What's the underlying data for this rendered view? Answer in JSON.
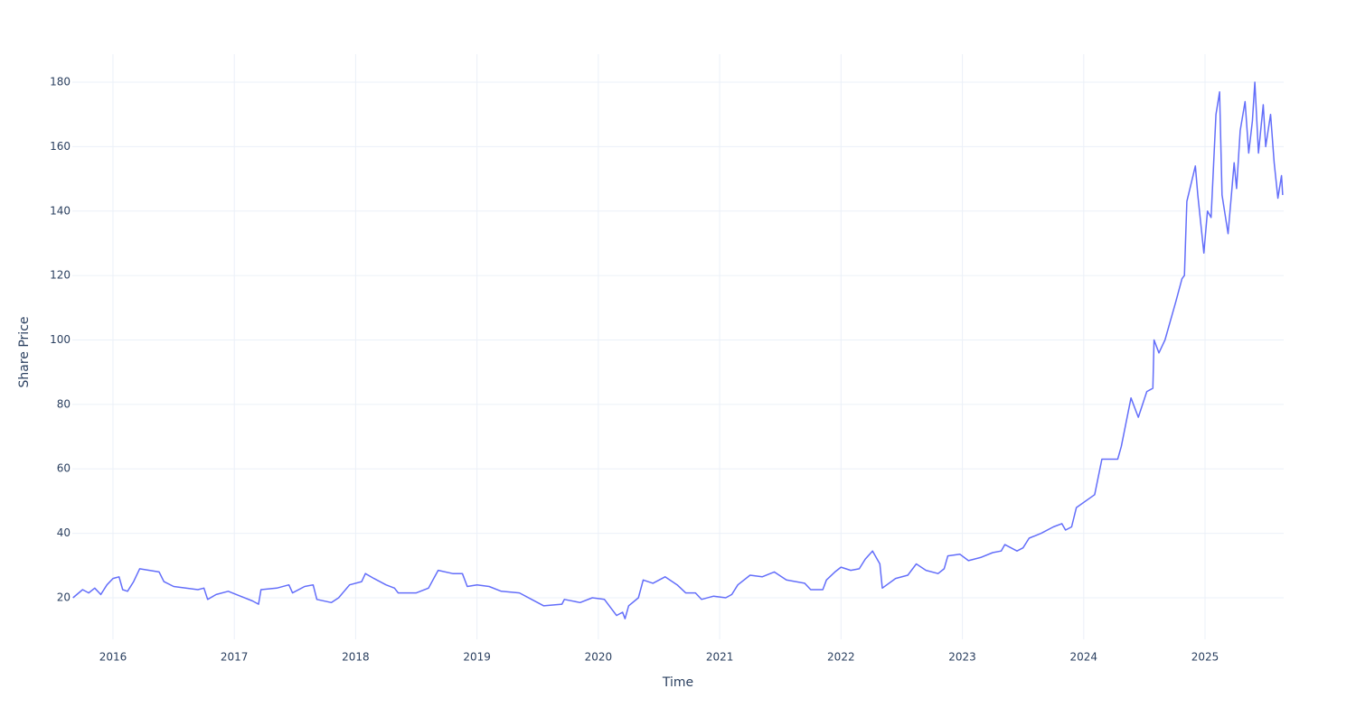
{
  "chart_data": {
    "type": "line",
    "x_label": "Time",
    "y_label": "Share Price",
    "xlim": [
      2015.665,
      2025.648
    ],
    "xticks": [
      2016,
      2017,
      2018,
      2019,
      2020,
      2021,
      2022,
      2023,
      2024,
      2025
    ],
    "ylim": [
      7.1,
      188.7
    ],
    "yticks": [
      20,
      40,
      60,
      80,
      100,
      120,
      140,
      160,
      180
    ],
    "grid": true,
    "series": [
      {
        "color": "#636efa",
        "x": [
          2015.67,
          2015.75,
          2015.8,
          2015.85,
          2015.9,
          2015.95,
          2016.0,
          2016.05,
          2016.08,
          2016.12,
          2016.17,
          2016.22,
          2016.3,
          2016.38,
          2016.42,
          2016.5,
          2016.6,
          2016.7,
          2016.75,
          2016.78,
          2016.85,
          2016.95,
          2017.05,
          2017.15,
          2017.2,
          2017.22,
          2017.35,
          2017.45,
          2017.48,
          2017.58,
          2017.65,
          2017.68,
          2017.8,
          2017.86,
          2017.95,
          2018.05,
          2018.08,
          2018.15,
          2018.25,
          2018.32,
          2018.35,
          2018.5,
          2018.6,
          2018.68,
          2018.8,
          2018.88,
          2018.92,
          2019.0,
          2019.1,
          2019.2,
          2019.35,
          2019.45,
          2019.55,
          2019.7,
          2019.72,
          2019.85,
          2019.95,
          2020.05,
          2020.1,
          2020.15,
          2020.2,
          2020.22,
          2020.25,
          2020.33,
          2020.37,
          2020.45,
          2020.55,
          2020.65,
          2020.72,
          2020.8,
          2020.85,
          2020.95,
          2021.05,
          2021.1,
          2021.15,
          2021.25,
          2021.35,
          2021.45,
          2021.55,
          2021.7,
          2021.75,
          2021.85,
          2021.88,
          2021.95,
          2022.0,
          2022.08,
          2022.15,
          2022.2,
          2022.26,
          2022.32,
          2022.34,
          2022.45,
          2022.55,
          2022.62,
          2022.7,
          2022.8,
          2022.85,
          2022.88,
          2022.98,
          2023.05,
          2023.15,
          2023.25,
          2023.32,
          2023.35,
          2023.45,
          2023.5,
          2023.55,
          2023.65,
          2023.75,
          2023.82,
          2023.85,
          2023.9,
          2023.94,
          2024.09,
          2024.15,
          2024.28,
          2024.31,
          2024.39,
          2024.45,
          2024.52,
          2024.57,
          2024.58,
          2024.62,
          2024.67,
          2024.76,
          2024.81,
          2024.83,
          2024.85,
          2024.92,
          2024.94,
          2024.99,
          2025.02,
          2025.05,
          2025.09,
          2025.12,
          2025.14,
          2025.19,
          2025.24,
          2025.26,
          2025.29,
          2025.33,
          2025.36,
          2025.39,
          2025.41,
          2025.44,
          2025.48,
          2025.5,
          2025.54,
          2025.57,
          2025.6,
          2025.63,
          2025.64
        ],
        "values": [
          20,
          22.5,
          21.5,
          23,
          21,
          24,
          26,
          26.5,
          22.5,
          22,
          25,
          29,
          28.5,
          28,
          25,
          23.5,
          23,
          22.5,
          23,
          19.5,
          21,
          22,
          20.5,
          19,
          18,
          22.5,
          23,
          24,
          21.5,
          23.5,
          24,
          19.5,
          18.5,
          20,
          24,
          25,
          27.5,
          26,
          24,
          23,
          21.5,
          21.5,
          23,
          28.5,
          27.5,
          27.5,
          23.5,
          24,
          23.5,
          22,
          21.5,
          19.5,
          17.5,
          18,
          19.5,
          18.5,
          20,
          19.5,
          17,
          14.5,
          15.5,
          13.5,
          17.5,
          20,
          25.5,
          24.5,
          26.5,
          24,
          21.5,
          21.5,
          19.5,
          20.5,
          20,
          21,
          24,
          27,
          26.5,
          28,
          25.5,
          24.5,
          22.5,
          22.5,
          25.5,
          28,
          29.5,
          28.5,
          29,
          32,
          34.5,
          30.5,
          23,
          26,
          27,
          30.5,
          28.5,
          27.5,
          29,
          33,
          33.5,
          31.5,
          32.5,
          34,
          34.5,
          36.5,
          34.5,
          35.5,
          38.5,
          40,
          42,
          43,
          41,
          42,
          48,
          52,
          63,
          63,
          67,
          82,
          76,
          84,
          85,
          100,
          96,
          100,
          112,
          119,
          120,
          143,
          154,
          145,
          127,
          140,
          138,
          170,
          177,
          145,
          133,
          155,
          147,
          165,
          174,
          158,
          168,
          180,
          158,
          173,
          160,
          170,
          155,
          144,
          151,
          145
        ]
      }
    ]
  }
}
